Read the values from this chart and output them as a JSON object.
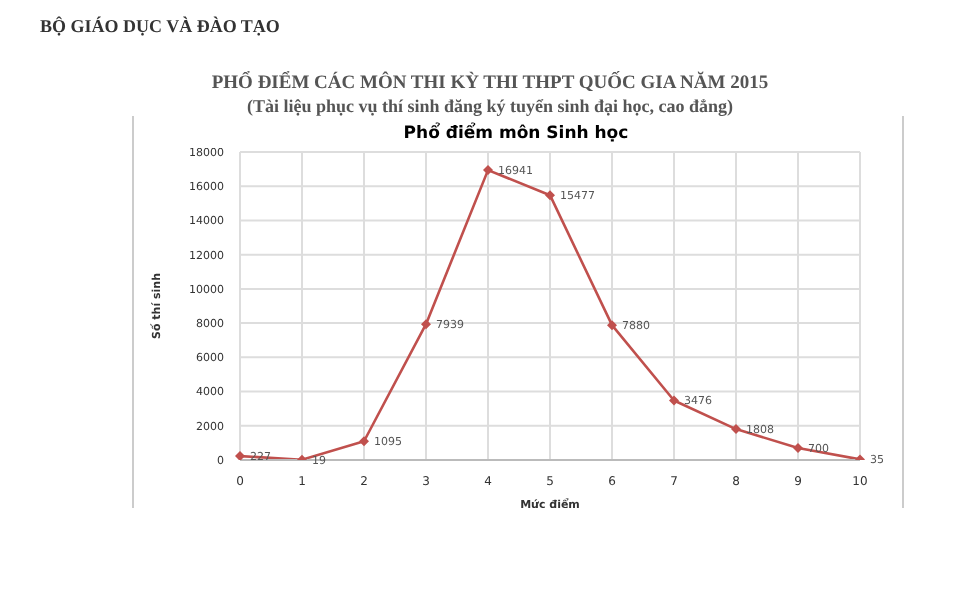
{
  "chart_data": {
    "type": "line",
    "title": "PHỔ ĐIỂM CÁC MÔN THI KỲ THI THPT QUỐC GIA NĂM 2015",
    "subtitle": "(Tài liệu phục vụ thí sinh đăng ký tuyển sinh đại học, cao đẳng)",
    "annotations": [
      "BỘ GIÁO DỤC VÀ ĐÀO TẠO",
      "Phổ điểm môn Sinh học"
    ],
    "xlabel": "Mức điểm",
    "ylabel": "Số thí sinh",
    "categories": [
      "0",
      "1",
      "2",
      "3",
      "4",
      "5",
      "6",
      "7",
      "8",
      "9",
      "10"
    ],
    "series": [
      {
        "color": "#c0504d",
        "values": [
          227,
          19,
          1095,
          7939,
          16941,
          15477,
          7880,
          3476,
          1808,
          700,
          35
        ]
      }
    ],
    "ylim": [
      0,
      18000
    ],
    "yticks": [
      0,
      2000,
      4000,
      6000,
      8000,
      10000,
      12000,
      14000,
      16000,
      18000
    ],
    "grid": true,
    "marker": "diamond",
    "data_labels": true,
    "legend": false
  }
}
